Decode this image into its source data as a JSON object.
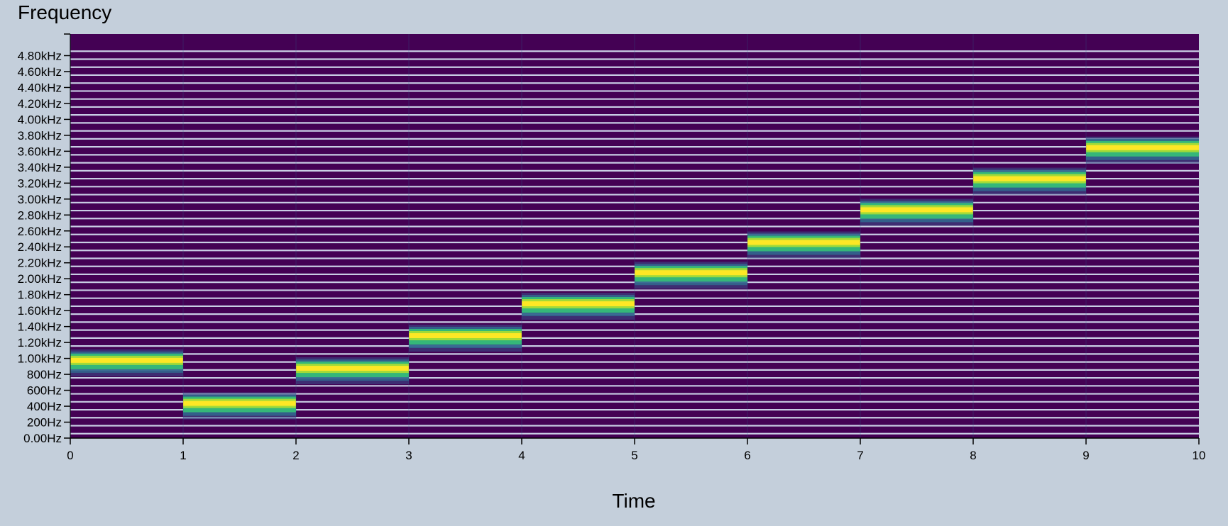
{
  "chart_data": {
    "type": "heatmap",
    "ylabel": "Frequency",
    "xlabel": "Time",
    "xlim": [
      0,
      10
    ],
    "ylim": [
      0,
      5000
    ],
    "x_ticks": [
      "0",
      "1",
      "2",
      "3",
      "4",
      "5",
      "6",
      "7",
      "8",
      "9",
      "10"
    ],
    "y_ticks": [
      "0.00Hz",
      "200Hz",
      "400Hz",
      "600Hz",
      "800Hz",
      "1.00kHz",
      "1.20kHz",
      "1.40kHz",
      "1.60kHz",
      "1.80kHz",
      "2.00kHz",
      "2.20kHz",
      "2.40kHz",
      "2.60kHz",
      "2.80kHz",
      "3.00kHz",
      "3.20kHz",
      "3.40kHz",
      "3.60kHz",
      "3.80kHz",
      "4.00kHz",
      "4.20kHz",
      "4.40kHz",
      "4.60kHz",
      "4.80kHz"
    ],
    "colormap": "viridis",
    "segments": [
      {
        "t_start": 0,
        "t_end": 1,
        "freq_hz": 980
      },
      {
        "t_start": 1,
        "t_end": 2,
        "freq_hz": 440
      },
      {
        "t_start": 2,
        "t_end": 3,
        "freq_hz": 880
      },
      {
        "t_start": 3,
        "t_end": 4,
        "freq_hz": 1290
      },
      {
        "t_start": 4,
        "t_end": 5,
        "freq_hz": 1690
      },
      {
        "t_start": 5,
        "t_end": 6,
        "freq_hz": 2080
      },
      {
        "t_start": 6,
        "t_end": 7,
        "freq_hz": 2460
      },
      {
        "t_start": 7,
        "t_end": 8,
        "freq_hz": 2870
      },
      {
        "t_start": 8,
        "t_end": 9,
        "freq_hz": 3260
      },
      {
        "t_start": 9,
        "t_end": 10,
        "freq_hz": 3650
      }
    ],
    "colors": {
      "background": "#440154",
      "peak": "#fde725",
      "strong": "#a0da39",
      "mid": "#35b779",
      "weak": "#31688e",
      "halo": "#3b528b",
      "line": "#c8cde4"
    }
  }
}
